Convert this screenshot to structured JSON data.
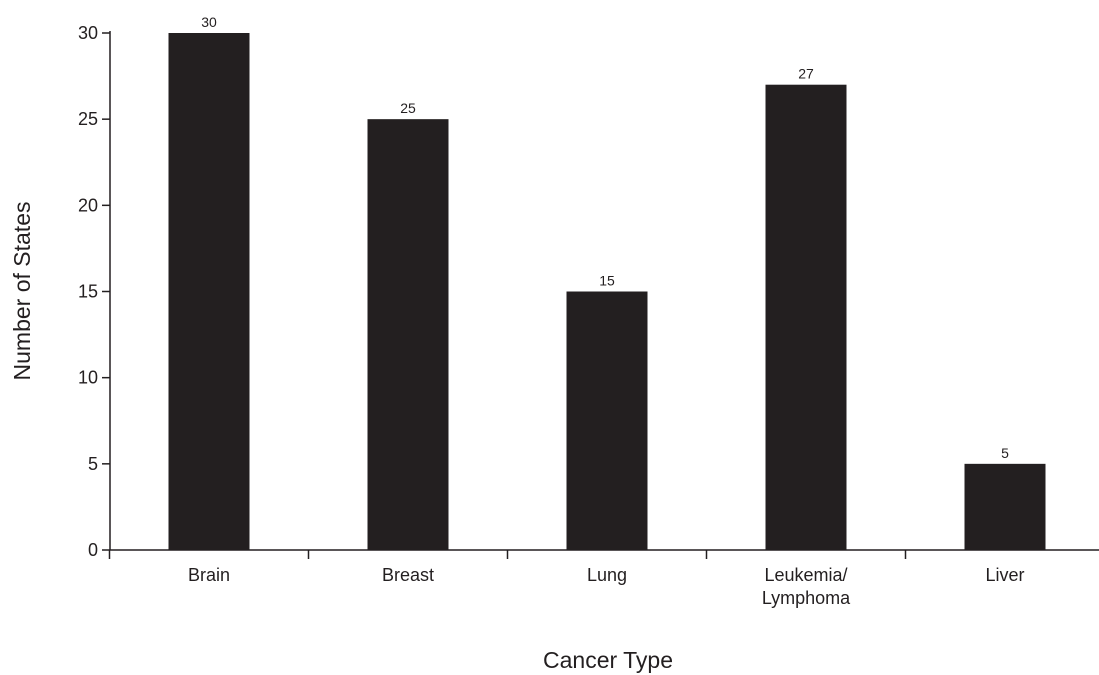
{
  "chart_data": {
    "type": "bar",
    "title": "",
    "xlabel": "Cancer Type",
    "ylabel": "Number of States",
    "categories": [
      [
        "Brain"
      ],
      [
        "Breast"
      ],
      [
        "Lung"
      ],
      [
        "Leukemia/",
        "Lymphoma"
      ],
      [
        "Liver"
      ]
    ],
    "values": [
      30,
      25,
      15,
      27,
      5
    ],
    "data_labels": [
      "30",
      "25",
      "15",
      "27",
      "5"
    ],
    "ylim": [
      0,
      30
    ],
    "yticks": [
      0,
      5,
      10,
      15,
      20,
      25,
      30
    ],
    "grid": false,
    "legend": "none",
    "bar_color": "#231f20"
  }
}
